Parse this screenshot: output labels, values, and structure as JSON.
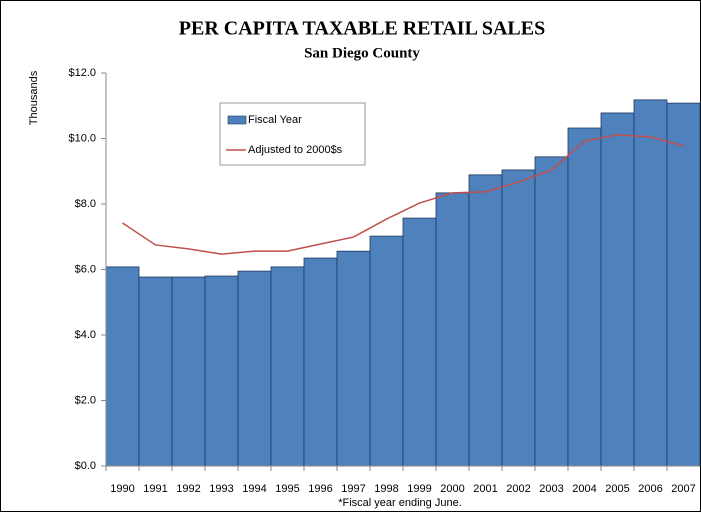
{
  "chart_data": {
    "type": "bar",
    "title": "PER CAPITA TAXABLE RETAIL SALES",
    "subtitle": "San Diego County",
    "y_label": "Thousands",
    "note": "*Fiscal year ending June.",
    "categories": [
      "1990",
      "1991",
      "1992",
      "1993",
      "1994",
      "1995",
      "1996",
      "1997",
      "1998",
      "1999",
      "2000",
      "2001",
      "2002",
      "2003",
      "2004",
      "2005",
      "2006",
      "2007"
    ],
    "series": [
      {
        "name": "Fiscal Year",
        "type": "bar",
        "color": "#4f81bd",
        "values": [
          6.08,
          5.77,
          5.77,
          5.8,
          5.95,
          6.08,
          6.35,
          6.56,
          7.02,
          7.57,
          8.34,
          8.89,
          9.04,
          9.44,
          10.32,
          10.78,
          11.18,
          11.08
        ]
      },
      {
        "name": "Adjusted to 2000$s",
        "type": "line",
        "color": "#c0504d",
        "values": [
          7.42,
          6.75,
          6.63,
          6.47,
          6.56,
          6.56,
          6.78,
          6.99,
          7.54,
          8.03,
          8.34,
          8.37,
          8.67,
          9.04,
          9.92,
          10.11,
          10.05,
          9.77
        ]
      }
    ],
    "ylim": [
      0,
      12
    ],
    "yticks": [
      {
        "value": 0,
        "label": "$0.0"
      },
      {
        "value": 2,
        "label": "$2.0"
      },
      {
        "value": 4,
        "label": "$4.0"
      },
      {
        "value": 6,
        "label": "$6.0"
      },
      {
        "value": 8,
        "label": "$8.0"
      },
      {
        "value": 10,
        "label": "$10.0"
      },
      {
        "value": 12,
        "label": "$12.0"
      }
    ],
    "grid": false
  }
}
